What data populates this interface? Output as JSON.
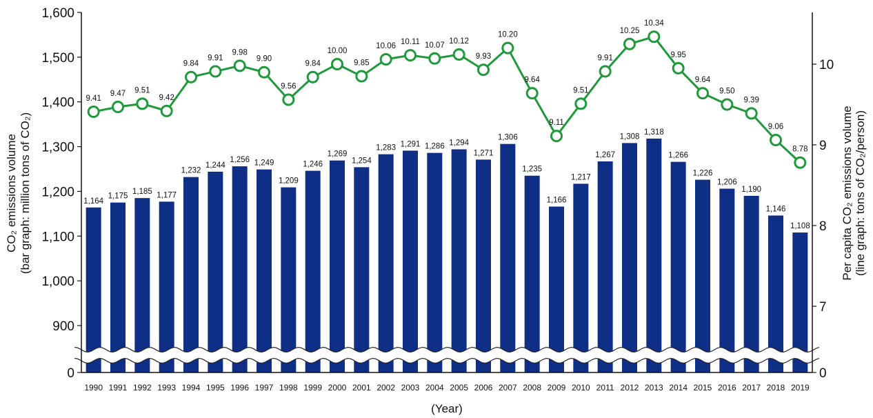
{
  "chart_data": {
    "type": "bar+line",
    "x": [
      "1990",
      "1991",
      "1992",
      "1993",
      "1994",
      "1995",
      "1996",
      "1997",
      "1998",
      "1999",
      "2000",
      "2001",
      "2002",
      "2003",
      "2004",
      "2005",
      "2006",
      "2007",
      "2008",
      "2009",
      "2010",
      "2011",
      "2012",
      "2013",
      "2014",
      "2015",
      "2016",
      "2017",
      "2018",
      "2019"
    ],
    "x_labels_text": [
      "1990",
      "1991",
      "1992",
      "1993",
      "1994",
      "1995",
      "1996",
      "1997",
      "1998",
      "1999",
      "2000",
      "2001",
      "2002",
      "2003",
      "2004",
      "2005",
      "2006",
      "2007",
      "2008",
      "2009",
      "2010",
      "2011",
      "2012",
      "2013",
      "2014",
      "2015",
      "2016",
      "2017",
      "2018",
      "2019"
    ],
    "bar_series": {
      "values": [
        1164,
        1175,
        1185,
        1177,
        1232,
        1244,
        1256,
        1249,
        1209,
        1246,
        1269,
        1254,
        1283,
        1291,
        1286,
        1294,
        1271,
        1306,
        1235,
        1166,
        1217,
        1267,
        1308,
        1318,
        1266,
        1226,
        1206,
        1190,
        1146,
        1108
      ],
      "labels": [
        "1,164",
        "1,175",
        "1,185",
        "1,177",
        "1,232",
        "1,244",
        "1,256",
        "1,249",
        "1,209",
        "1,246",
        "1,269",
        "1,254",
        "1,283",
        "1,291",
        "1,286",
        "1,294",
        "1,271",
        "1,306",
        "1,235",
        "1,166",
        "1,217",
        "1,267",
        "1,308",
        "1,318",
        "1,266",
        "1,226",
        "1,206",
        "1,190",
        "1,146",
        "1,108"
      ],
      "color": "#0f2f87",
      "axis": "left"
    },
    "line_series": {
      "values": [
        9.41,
        9.47,
        9.51,
        9.42,
        9.84,
        9.91,
        9.98,
        9.9,
        9.56,
        9.84,
        10.0,
        9.85,
        10.06,
        10.11,
        10.07,
        10.12,
        9.93,
        10.2,
        9.64,
        9.11,
        9.51,
        9.91,
        10.25,
        10.34,
        9.95,
        9.64,
        9.5,
        9.39,
        9.06,
        8.78
      ],
      "labels": [
        "9.41",
        "9.47",
        "9.51",
        "9.42",
        "9.84",
        "9.91",
        "9.98",
        "9.90",
        "9.56",
        "9.84",
        "10.00",
        "9.85",
        "10.06",
        "10.11",
        "10.07",
        "10.12",
        "9.93",
        "10.20",
        "9.64",
        "9.11",
        "9.51",
        "9.91",
        "10.25",
        "10.34",
        "9.95",
        "9.64",
        "9.50",
        "9.39",
        "9.06",
        "8.78"
      ],
      "color": "#1e9a3c",
      "axis": "right"
    },
    "xlabel": "(Year)",
    "ylabel_left": [
      "CO₂ emissions volume",
      "(bar graph: million tons of CO₂)"
    ],
    "ylabel_right": [
      "Per capita CO₂ emissions volume",
      "(line graph: tons of CO₂/person)"
    ],
    "y_left": {
      "ylim": [
        800,
        1600
      ],
      "ticks": [
        900,
        1000,
        1100,
        1200,
        1300,
        1400,
        1500,
        1600
      ],
      "tick_labels": [
        "900",
        "1,000",
        "1,100",
        "1,200",
        "1,300",
        "1,400",
        "1,500",
        "1,600"
      ],
      "zero_label": "0",
      "axis_break": true
    },
    "y_right": {
      "ylim": [
        6.25,
        10.75
      ],
      "ticks": [
        7,
        8,
        9,
        10
      ],
      "tick_labels": [
        "7",
        "8",
        "9",
        "10"
      ],
      "zero_label": "0",
      "axis_break": true
    },
    "grid": false,
    "legend": "none"
  }
}
